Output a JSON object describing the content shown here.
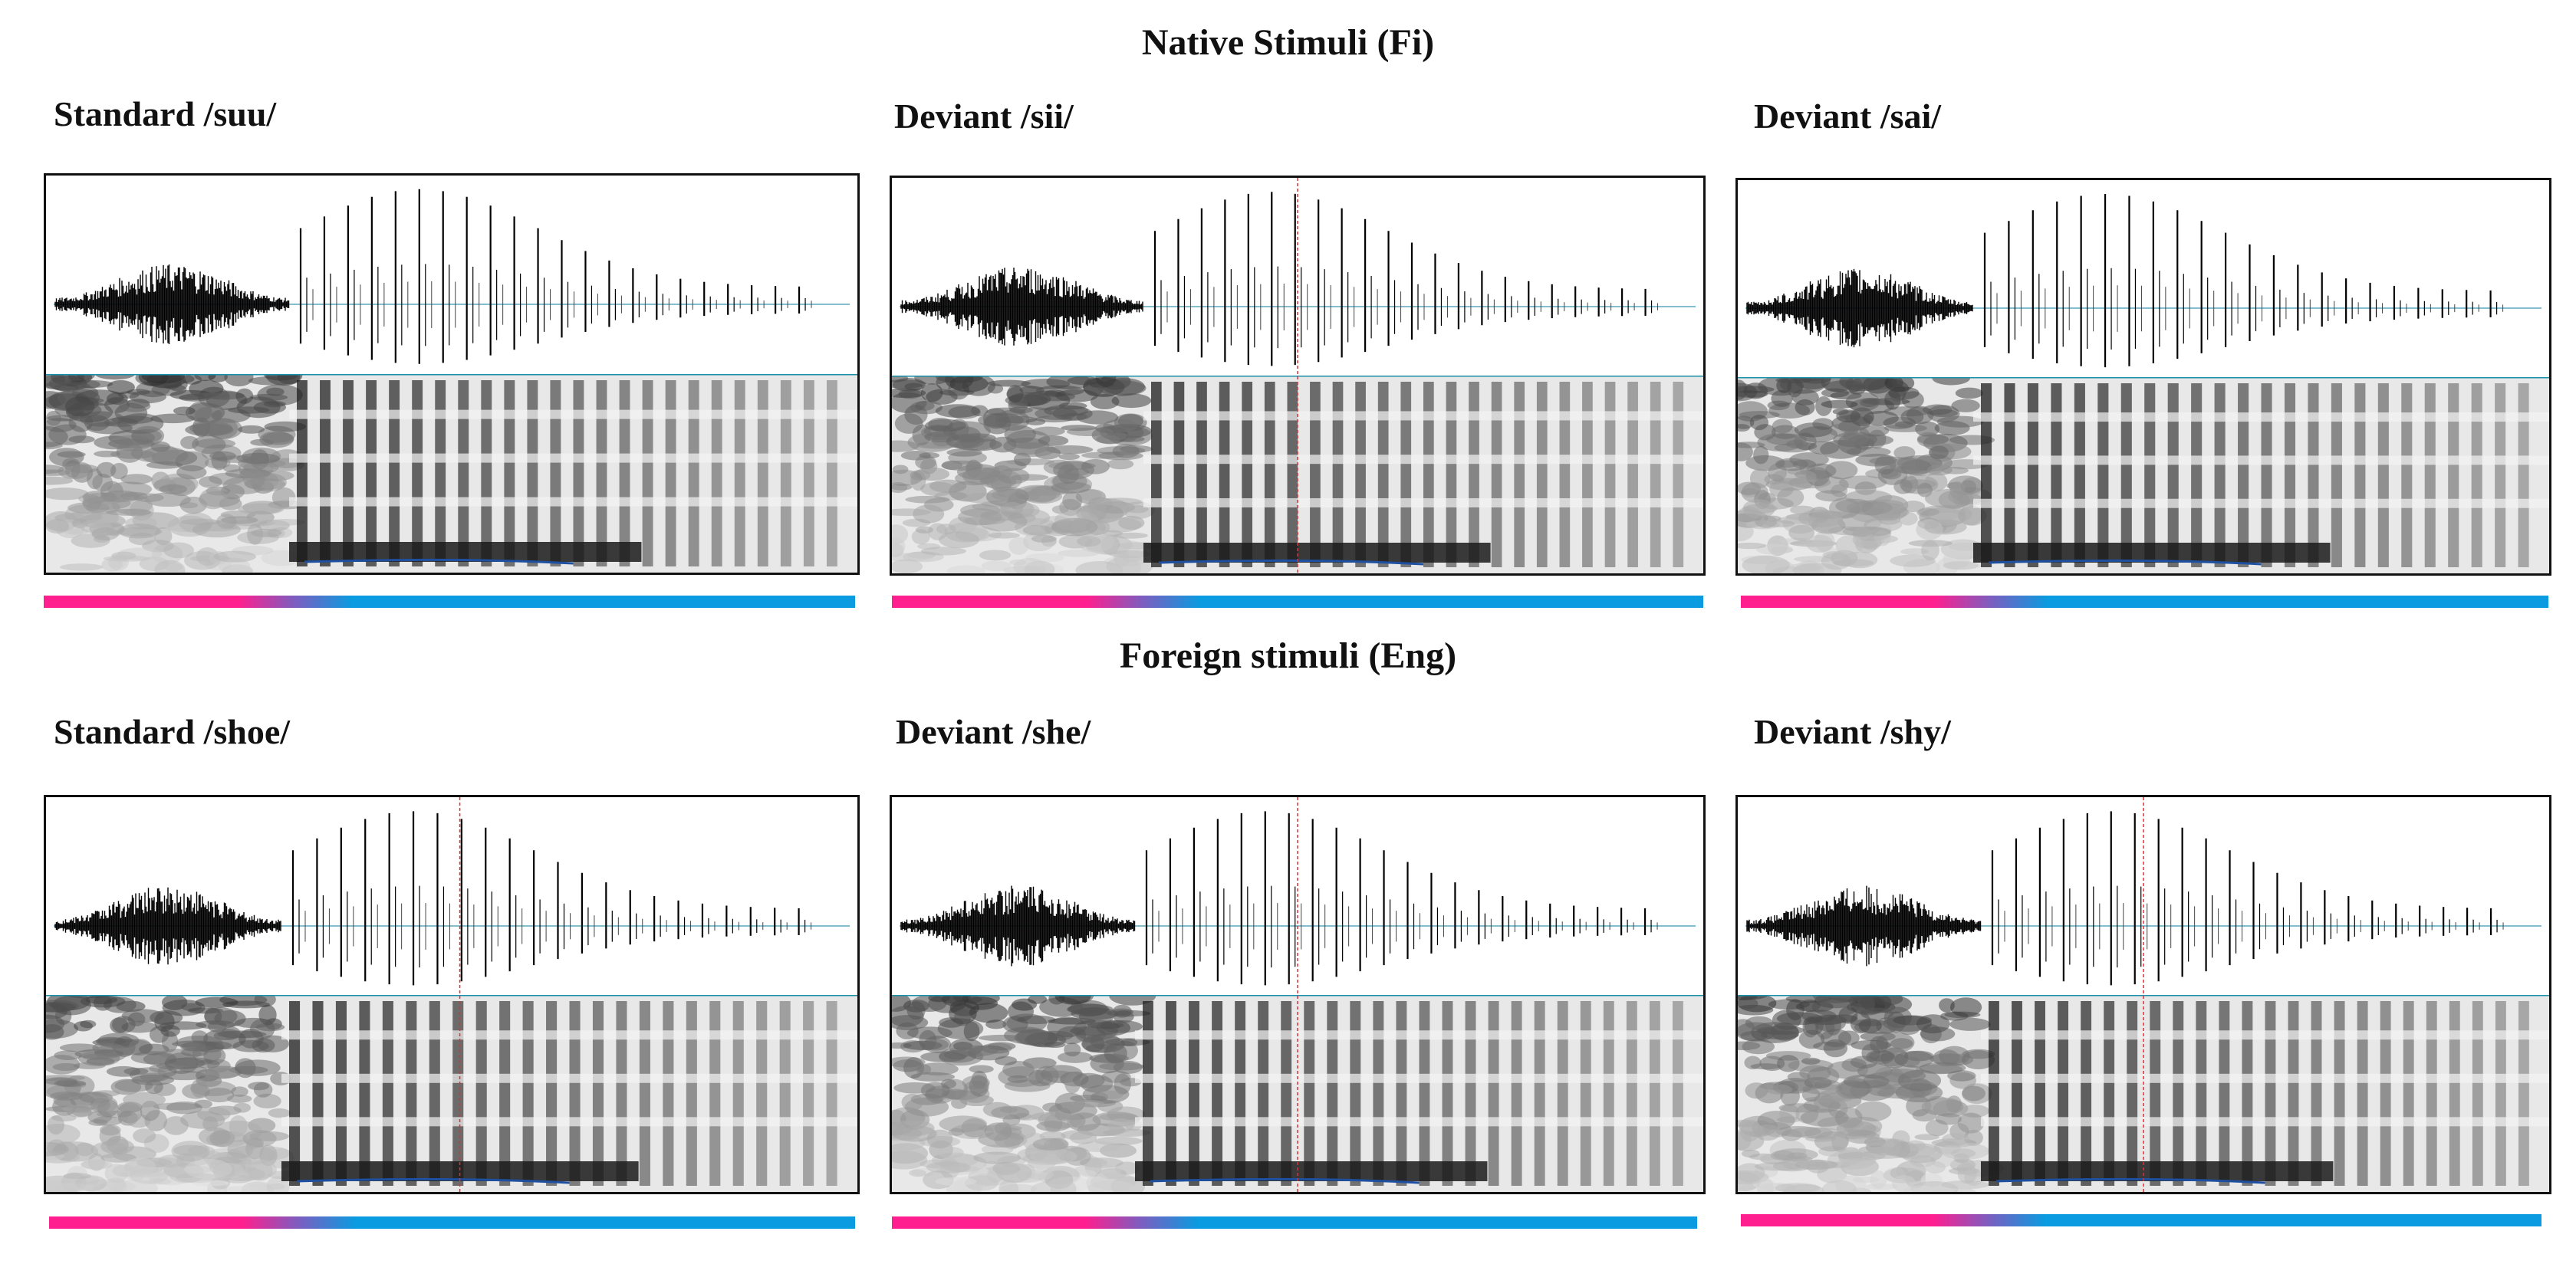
{
  "sections": [
    {
      "title": "Native Stimuli (Fi)",
      "panels": [
        {
          "label": "Standard /suu/",
          "marker": false
        },
        {
          "label": "Deviant /sii/",
          "marker": true
        },
        {
          "label": "Deviant /sai/",
          "marker": false
        }
      ]
    },
    {
      "title": "Foreign stimuli (Eng)",
      "panels": [
        {
          "label": "Standard /shoe/",
          "marker": true
        },
        {
          "label": "Deviant  /she/",
          "marker": true
        },
        {
          "label": "Deviant /shy/",
          "marker": true
        }
      ]
    }
  ],
  "colors": {
    "frication_bar": "#ff1f8f",
    "vowel_bar": "#0a9be0",
    "divider": "#1c8fa8",
    "waveform": "#000000",
    "marker": "#e03030"
  }
}
